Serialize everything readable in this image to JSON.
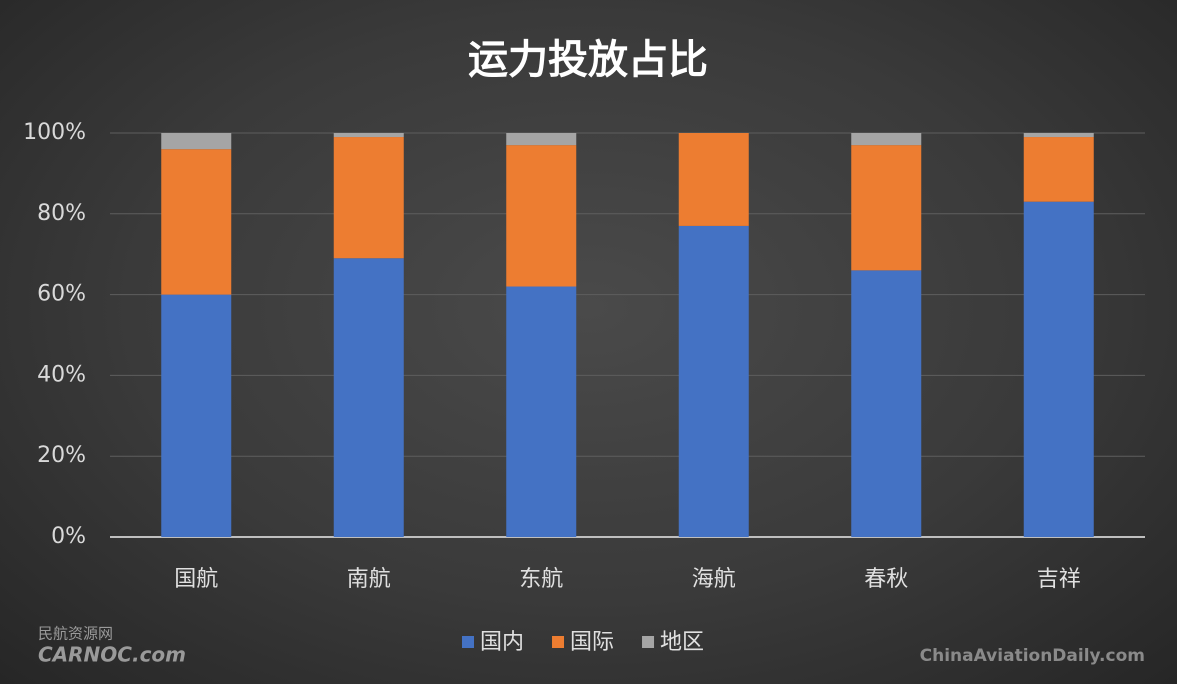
{
  "chart_data": {
    "type": "stacked_bar",
    "title": "运力投放占比",
    "categories": [
      "国航",
      "南航",
      "东航",
      "海航",
      "春秋",
      "吉祥"
    ],
    "series": [
      {
        "name": "国内",
        "color": "#4472c4",
        "values": [
          60,
          69,
          62,
          77,
          66,
          83
        ]
      },
      {
        "name": "国际",
        "color": "#ed7d31",
        "values": [
          36,
          30,
          35,
          23,
          31,
          16
        ]
      },
      {
        "name": "地区",
        "color": "#a5a5a5",
        "values": [
          4,
          1,
          3,
          0,
          3,
          1
        ]
      }
    ],
    "ylim": [
      0,
      100
    ],
    "yticks": [
      {
        "value": 0,
        "label": "0%"
      },
      {
        "value": 20,
        "label": "20%"
      },
      {
        "value": 40,
        "label": "40%"
      },
      {
        "value": 60,
        "label": "60%"
      },
      {
        "value": 80,
        "label": "80%"
      },
      {
        "value": 100,
        "label": "100%"
      }
    ],
    "grid": true,
    "legend": "bottom",
    "watermarks": [
      "民航资源网",
      "CARNOC.com",
      "ChinaAviationDaily.com"
    ]
  }
}
